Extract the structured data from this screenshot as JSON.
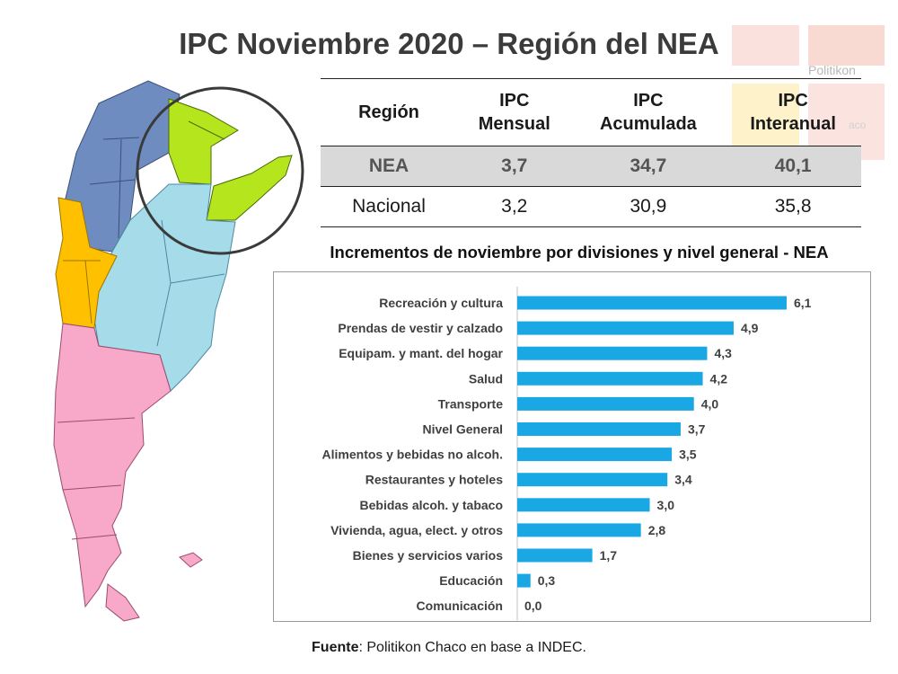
{
  "title": "IPC Noviembre 2020 – Región del NEA",
  "logo": {
    "text": "Politikon",
    "text2": "aco"
  },
  "colors": {
    "bar": "#1aa8e4",
    "nea_blue": "#6f8cc0",
    "green": "#b5e61d",
    "light_blue": "#a6dbe9",
    "orange": "#ffc000",
    "pink": "#f8a8c8"
  },
  "table": {
    "headers": [
      "Región",
      "IPC\nMensual",
      "IPC\nAcumulada",
      "IPC\nInteranual"
    ],
    "rows": [
      {
        "region": "NEA",
        "mensual": "3,7",
        "acumulada": "34,7",
        "interanual": "40,1"
      },
      {
        "region": "Nacional",
        "mensual": "3,2",
        "acumulada": "30,9",
        "interanual": "35,8"
      }
    ]
  },
  "chart_data": {
    "type": "bar",
    "orientation": "horizontal",
    "title": "Incrementos de noviembre por divisiones y nivel general - NEA",
    "categories": [
      "Recreación y cultura",
      "Prendas de vestir y calzado",
      "Equipam. y mant. del hogar",
      "Salud",
      "Transporte",
      "Nivel General",
      "Alimentos y bebidas no alcoh.",
      "Restaurantes y hoteles",
      "Bebidas alcoh. y tabaco",
      "Vivienda, agua, elect. y otros",
      "Bienes y servicios varios",
      "Educación",
      "Comunicación"
    ],
    "values": [
      6.1,
      4.9,
      4.3,
      4.2,
      4.0,
      3.7,
      3.5,
      3.4,
      3.0,
      2.8,
      1.7,
      0.3,
      0.0
    ],
    "labels": [
      "6,1",
      "4,9",
      "4,3",
      "4,2",
      "4,0",
      "3,7",
      "3,5",
      "3,4",
      "3,0",
      "2,8",
      "1,7",
      "0,3",
      "0,0"
    ],
    "xlim": [
      0,
      6.1
    ]
  },
  "footer": {
    "label": "Fuente",
    "text": ": Politikon Chaco en base a INDEC."
  }
}
